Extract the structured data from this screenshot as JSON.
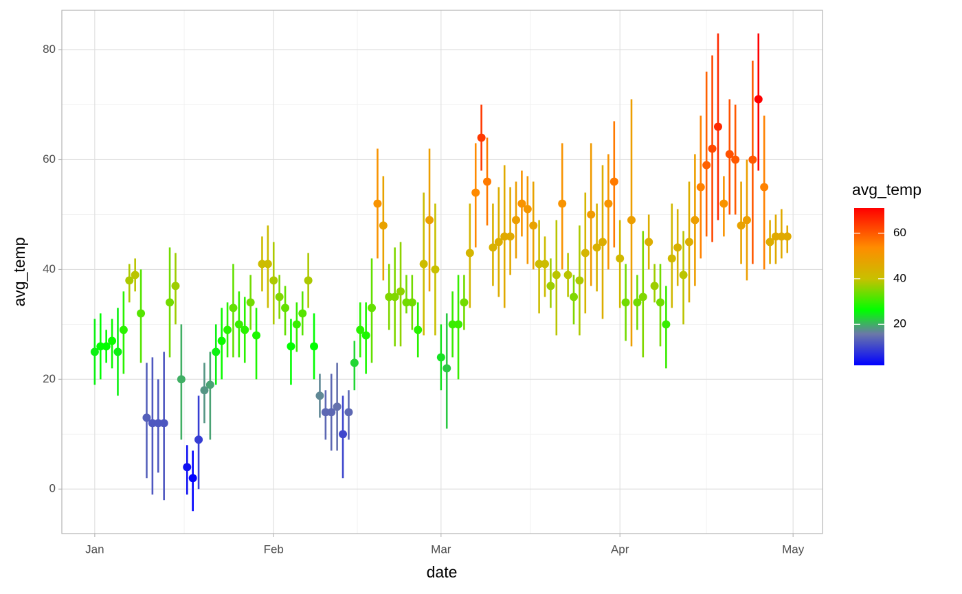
{
  "chart_data": {
    "type": "pointrange",
    "x_label": "date",
    "y_label": "avg_temp",
    "x": [
      1,
      2,
      3,
      4,
      5,
      6,
      7,
      8,
      9,
      10,
      11,
      12,
      13,
      14,
      15,
      16,
      17,
      18,
      19,
      20,
      21,
      22,
      23,
      24,
      25,
      26,
      27,
      28,
      29,
      30,
      31,
      32,
      33,
      34,
      35,
      36,
      37,
      38,
      39,
      40,
      41,
      42,
      43,
      44,
      45,
      46,
      47,
      48,
      49,
      50,
      51,
      52,
      53,
      54,
      55,
      56,
      57,
      58,
      59,
      60,
      61,
      62,
      63,
      64,
      65,
      66,
      67,
      68,
      69,
      70,
      71,
      72,
      73,
      74,
      75,
      76,
      77,
      78,
      79,
      80,
      81,
      82,
      83,
      84,
      85,
      86,
      87,
      88,
      89,
      90,
      91,
      92,
      93,
      94,
      95,
      96,
      97,
      98,
      99,
      100,
      101,
      102,
      103,
      104,
      105,
      106,
      107,
      108,
      109,
      110,
      111,
      112,
      113,
      114,
      115,
      116,
      117,
      118,
      119,
      120,
      121
    ],
    "values": [
      25,
      26,
      26,
      27,
      25,
      29,
      38,
      39,
      32,
      13,
      12,
      12,
      12,
      34,
      37,
      20,
      4,
      2,
      9,
      18,
      19,
      25,
      27,
      29,
      33,
      30,
      29,
      34,
      28,
      41,
      41,
      38,
      35,
      33,
      26,
      30,
      32,
      38,
      26,
      17,
      14,
      14,
      15,
      10,
      14,
      23,
      29,
      28,
      33,
      52,
      48,
      35,
      35,
      36,
      34,
      34,
      29,
      41,
      49,
      40,
      24,
      22,
      30,
      30,
      34,
      43,
      54,
      64,
      56,
      44,
      45,
      46,
      46,
      49,
      52,
      51,
      48,
      41,
      41,
      37,
      39,
      52,
      39,
      35,
      38,
      43,
      50,
      44,
      45,
      52,
      56,
      42,
      34,
      49,
      34,
      35,
      45,
      37,
      34,
      30,
      42,
      44,
      39,
      45,
      49,
      55,
      59,
      62,
      66,
      52,
      61,
      60,
      48,
      49,
      60,
      71,
      55,
      45,
      46,
      46,
      46
    ],
    "lower": [
      19,
      20,
      23,
      22,
      17,
      21,
      34,
      36,
      23,
      2,
      -1,
      3,
      -2,
      24,
      30,
      9,
      -1,
      -4,
      0,
      12,
      9,
      19,
      20,
      24,
      24,
      24,
      23,
      29,
      20,
      36,
      33,
      30,
      31,
      28,
      19,
      25,
      28,
      33,
      20,
      13,
      9,
      7,
      7,
      2,
      9,
      18,
      24,
      21,
      23,
      42,
      38,
      29,
      26,
      26,
      32,
      29,
      24,
      28,
      36,
      28,
      18,
      11,
      24,
      20,
      29,
      33,
      44,
      58,
      48,
      37,
      35,
      33,
      39,
      42,
      46,
      41,
      40,
      32,
      35,
      33,
      28,
      40,
      35,
      30,
      28,
      32,
      37,
      36,
      31,
      40,
      44,
      33,
      27,
      26,
      29,
      24,
      40,
      34,
      26,
      22,
      33,
      37,
      30,
      34,
      37,
      42,
      46,
      45,
      49,
      46,
      50,
      50,
      41,
      38,
      41,
      58,
      40,
      41,
      41,
      42,
      43
    ],
    "upper": [
      31,
      32,
      29,
      31,
      33,
      36,
      41,
      42,
      40,
      23,
      24,
      20,
      25,
      44,
      43,
      30,
      8,
      7,
      17,
      23,
      25,
      30,
      33,
      34,
      41,
      36,
      35,
      39,
      33,
      46,
      48,
      45,
      39,
      37,
      31,
      34,
      36,
      43,
      32,
      21,
      18,
      21,
      23,
      17,
      18,
      27,
      34,
      34,
      42,
      62,
      57,
      41,
      44,
      45,
      39,
      39,
      34,
      54,
      62,
      52,
      30,
      32,
      36,
      39,
      39,
      52,
      63,
      70,
      64,
      52,
      55,
      59,
      55,
      56,
      58,
      57,
      56,
      49,
      46,
      42,
      49,
      63,
      43,
      39,
      48,
      54,
      63,
      52,
      59,
      61,
      67,
      49,
      41,
      71,
      39,
      47,
      50,
      41,
      41,
      37,
      52,
      51,
      47,
      56,
      61,
      68,
      76,
      79,
      83,
      57,
      71,
      70,
      56,
      60,
      78,
      83,
      68,
      49,
      50,
      51,
      48
    ],
    "xlim": [
      -4.7,
      127.1
    ],
    "ylim": [
      -8.1,
      87.2
    ],
    "xticks": [
      {
        "value": 1,
        "label": "Jan"
      },
      {
        "value": 32,
        "label": "Feb"
      },
      {
        "value": 61,
        "label": "Mar"
      },
      {
        "value": 92,
        "label": "Apr"
      },
      {
        "value": 122,
        "label": "May"
      }
    ],
    "yticks": [
      0,
      20,
      40,
      60,
      80
    ],
    "grid": true,
    "legend_position": "right",
    "color_scale": {
      "title": "avg_temp",
      "colors": [
        "#0000ff",
        "#6b78a8",
        "#00ff00",
        "#c8c000",
        "#ff8c00",
        "#ff0000"
      ],
      "stops": [
        0,
        0.2,
        0.35,
        0.55,
        0.75,
        1
      ],
      "limits": [
        2,
        71
      ],
      "ticks": [
        20,
        40,
        60
      ]
    }
  }
}
